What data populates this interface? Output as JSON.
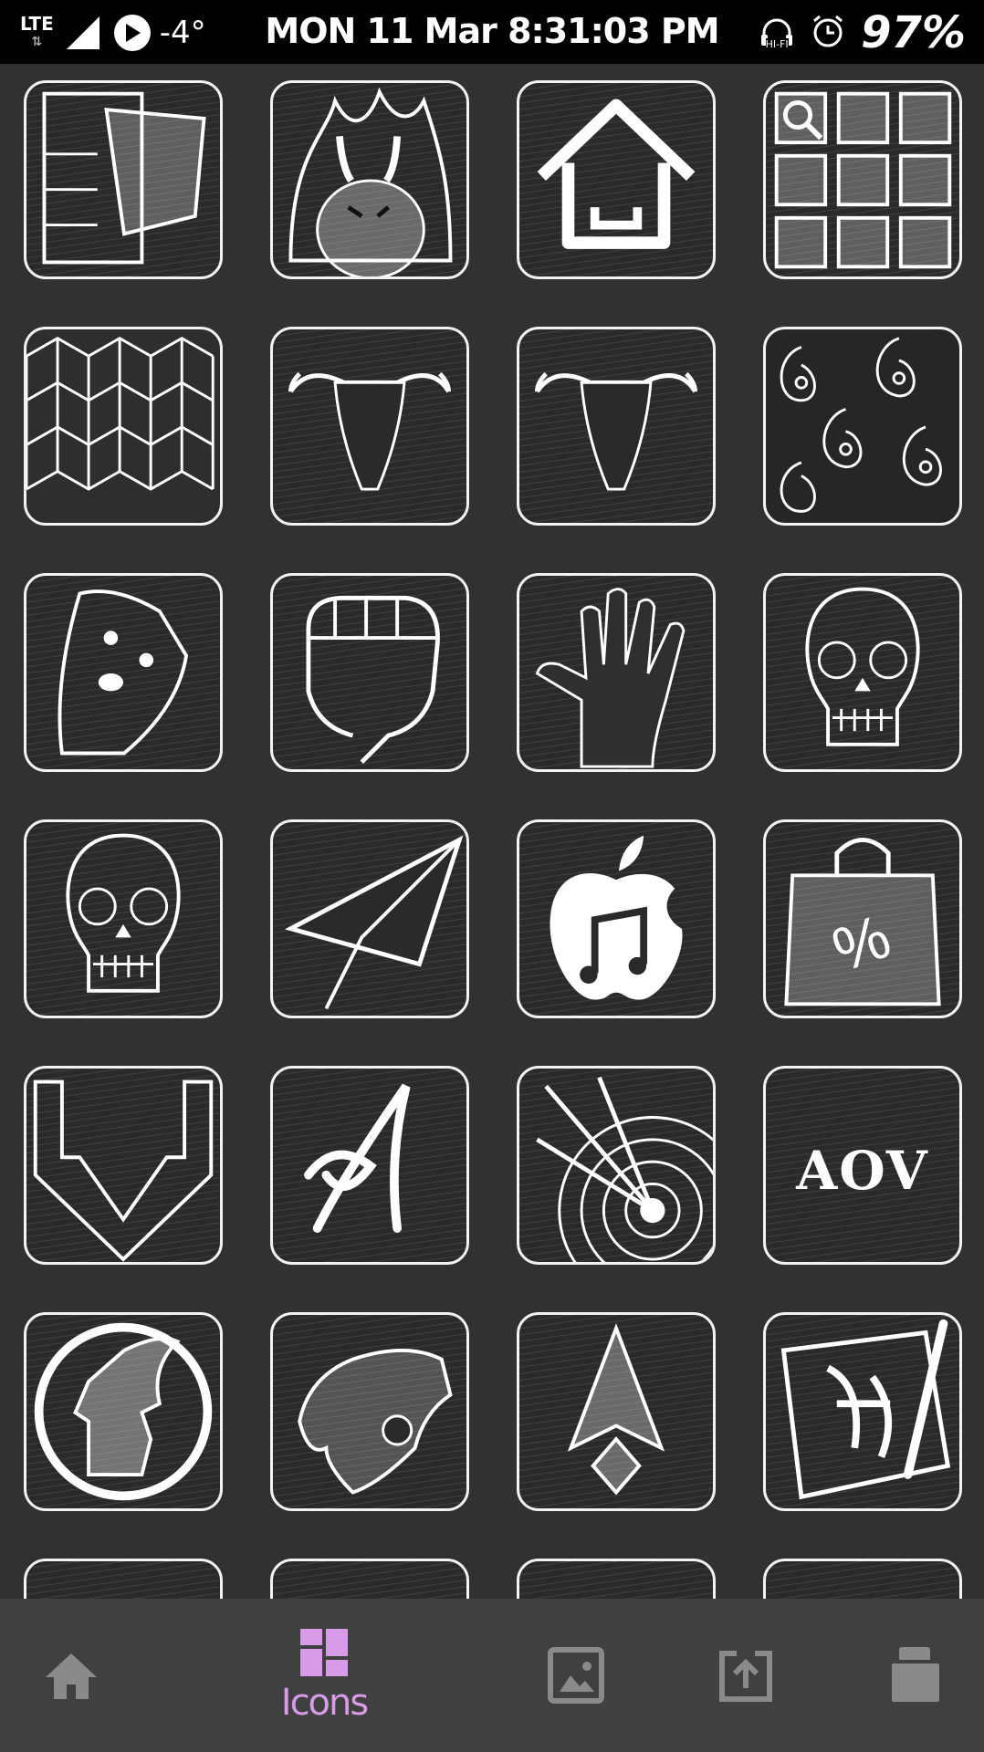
{
  "status_bar": {
    "network": "LTE",
    "temperature": "-4°",
    "datetime": "MON 11 Mar 8:31:03 PM",
    "hifi": "HI-FI",
    "battery": "97%"
  },
  "grid": {
    "tiles": [
      {
        "name": "scarves-icon"
      },
      {
        "name": "fire-monster-icon"
      },
      {
        "name": "home-icon"
      },
      {
        "name": "app-drawer-icon"
      },
      {
        "name": "cube-pattern-icon"
      },
      {
        "name": "bull-skull-icon"
      },
      {
        "name": "bull-skull-2-icon"
      },
      {
        "name": "paisley-icon"
      },
      {
        "name": "dog-icon"
      },
      {
        "name": "fist-icon"
      },
      {
        "name": "hand-icon"
      },
      {
        "name": "sugar-skull-icon"
      },
      {
        "name": "sugar-skull-2-icon"
      },
      {
        "name": "paper-plane-icon"
      },
      {
        "name": "apple-music-icon"
      },
      {
        "name": "shopping-bag-icon"
      },
      {
        "name": "download-arrow-icon"
      },
      {
        "name": "calligraphy-a-icon"
      },
      {
        "name": "arrows-target-icon"
      },
      {
        "name": "aov-icon",
        "label": "AOV"
      },
      {
        "name": "hero-head-icon"
      },
      {
        "name": "panther-icon"
      },
      {
        "name": "arrowhead-icon"
      },
      {
        "name": "calligraphy-brush-icon"
      }
    ]
  },
  "bottom_nav": {
    "items": [
      {
        "name": "home",
        "icon": "home-icon",
        "label": ""
      },
      {
        "name": "icons",
        "icon": "icons-grid-icon",
        "label": "Icons",
        "active": true
      },
      {
        "name": "wallpapers",
        "icon": "image-icon",
        "label": ""
      },
      {
        "name": "request",
        "icon": "upload-icon",
        "label": ""
      },
      {
        "name": "apply",
        "icon": "layers-icon",
        "label": ""
      }
    ],
    "active_color": "#d79be8",
    "inactive_color": "#8a8a8a"
  }
}
